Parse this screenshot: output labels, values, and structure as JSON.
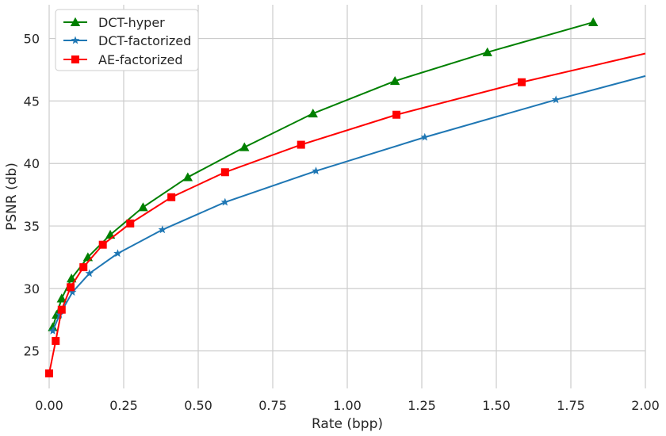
{
  "chart_data": {
    "type": "line",
    "xlabel": "Rate (bpp)",
    "ylabel": "PSNR (db)",
    "xlim": [
      0,
      2.0
    ],
    "ylim": [
      22,
      52.7
    ],
    "xticks": [
      "0.00",
      "0.25",
      "0.50",
      "0.75",
      "1.00",
      "1.25",
      "1.50",
      "1.75",
      "2.00"
    ],
    "yticks": [
      "25",
      "30",
      "35",
      "40",
      "45",
      "50"
    ],
    "grid": true,
    "legend_position": "top-left",
    "series": [
      {
        "name": "DCT-hyper",
        "color": "#008000",
        "marker": "triangle",
        "x": [
          0.012,
          0.025,
          0.042,
          0.075,
          0.13,
          0.205,
          0.315,
          0.465,
          0.655,
          0.885,
          1.16,
          1.47,
          1.825
        ],
        "y": [
          26.9,
          27.9,
          29.2,
          30.8,
          32.5,
          34.3,
          36.5,
          38.9,
          41.3,
          44.0,
          46.6,
          48.9,
          51.3
        ]
      },
      {
        "name": "DCT-factorized",
        "color": "#1f77b4",
        "marker": "star",
        "x": [
          0.012,
          0.035,
          0.078,
          0.135,
          0.23,
          0.38,
          0.59,
          0.895,
          1.26,
          1.7,
          2.0
        ],
        "y": [
          26.6,
          27.9,
          29.7,
          31.2,
          32.8,
          34.7,
          36.9,
          39.4,
          42.1,
          45.1,
          47.0
        ],
        "markers_shown": 10
      },
      {
        "name": "AE-factorized",
        "color": "#ff0000",
        "marker": "square",
        "x": [
          0.0,
          0.022,
          0.042,
          0.072,
          0.115,
          0.18,
          0.272,
          0.41,
          0.59,
          0.845,
          1.165,
          1.585,
          2.0
        ],
        "y": [
          23.2,
          25.8,
          28.3,
          30.1,
          31.7,
          33.5,
          35.2,
          37.3,
          39.3,
          41.5,
          43.9,
          46.5,
          48.8
        ],
        "markers_shown": 12
      }
    ]
  }
}
